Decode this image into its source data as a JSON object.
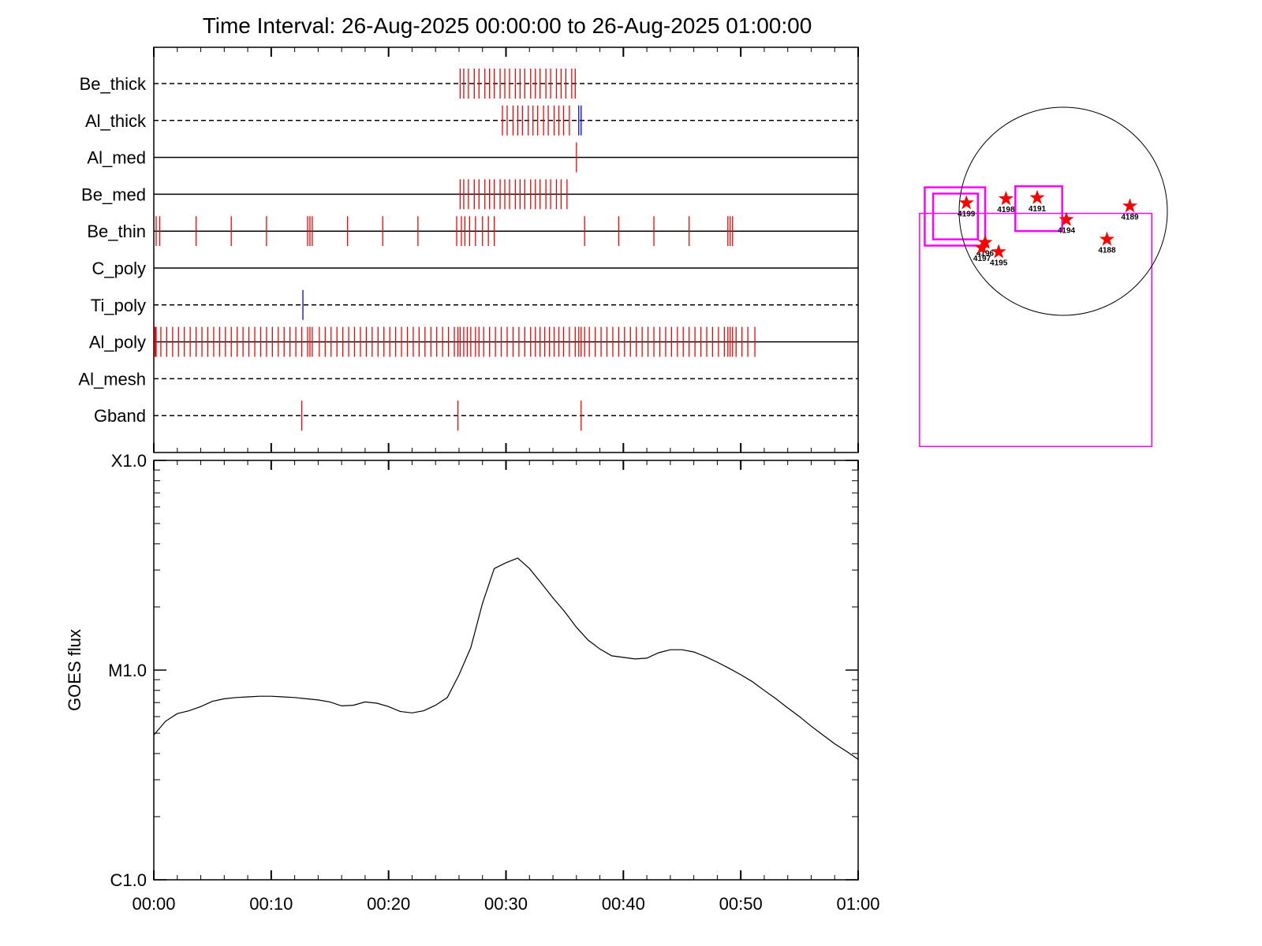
{
  "title": "Time Interval: 26-Aug-2025 00:00:00 to 26-Aug-2025 01:00:00",
  "colors": {
    "red": "#ff0000",
    "blue": "#0000ff",
    "magenta": "#ff00ff",
    "black": "#000000"
  },
  "chart_data": [
    {
      "type": "timeline",
      "x_unit": "minutes after 26-Aug-2025 00:00:00",
      "xlim": [
        0,
        60
      ],
      "tracks": [
        {
          "name": "Be_thick",
          "line": "dashed",
          "red": [
            26.1,
            26.4,
            26.8,
            27.3,
            27.7,
            28.2,
            28.6,
            29.0,
            29.5,
            29.9,
            30.3,
            30.8,
            31.2,
            31.6,
            32.1,
            32.5,
            32.9,
            33.4,
            33.8,
            34.3,
            34.7,
            35.1,
            35.6,
            35.9
          ],
          "blue": []
        },
        {
          "name": "Al_thick",
          "line": "dashed",
          "red": [
            29.7,
            30.1,
            30.6,
            31.0,
            31.4,
            31.9,
            32.3,
            32.7,
            33.2,
            33.6,
            34.1,
            34.5,
            34.9,
            35.4
          ],
          "blue": [
            36.2,
            36.4
          ]
        },
        {
          "name": "Al_med",
          "line": "solid",
          "red": [
            36.0
          ],
          "blue": []
        },
        {
          "name": "Be_med",
          "line": "solid",
          "red": [
            26.1,
            26.4,
            26.8,
            27.3,
            27.7,
            28.2,
            28.6,
            29.0,
            29.5,
            29.9,
            30.3,
            30.8,
            31.2,
            31.6,
            32.1,
            32.5,
            32.9,
            33.4,
            33.8,
            34.3,
            34.7,
            35.2
          ],
          "blue": []
        },
        {
          "name": "Be_thin",
          "line": "solid",
          "red": [
            0.2,
            0.5,
            3.6,
            6.6,
            9.6,
            13.1,
            13.3,
            13.5,
            16.5,
            19.5,
            22.5,
            25.8,
            26.2,
            26.5,
            26.9,
            27.4,
            28.0,
            28.5,
            29.0,
            36.7,
            39.6,
            42.6,
            45.6,
            48.9,
            49.1,
            49.3
          ],
          "blue": []
        },
        {
          "name": "C_poly",
          "line": "solid",
          "red": [],
          "blue": []
        },
        {
          "name": "Ti_poly",
          "line": "dashed",
          "red": [],
          "blue": [
            12.7
          ]
        },
        {
          "name": "Al_poly",
          "line": "solid",
          "red": [
            0.1,
            0.15,
            0.2,
            0.6,
            1.1,
            1.6,
            2.1,
            2.6,
            3.1,
            3.6,
            4.1,
            4.6,
            5.1,
            5.6,
            6.1,
            6.6,
            7.1,
            7.6,
            8.1,
            8.6,
            9.1,
            9.6,
            10.1,
            10.6,
            11.1,
            11.6,
            12.1,
            12.6,
            13.1,
            13.3,
            13.5,
            14.1,
            14.6,
            15.1,
            15.6,
            16.1,
            16.6,
            17.1,
            17.6,
            18.1,
            18.6,
            19.1,
            19.6,
            20.1,
            20.6,
            21.1,
            21.6,
            22.1,
            22.6,
            23.1,
            23.6,
            24.1,
            24.6,
            25.1,
            25.6,
            25.9,
            26.1,
            26.4,
            26.7,
            27.0,
            27.4,
            27.7,
            28.1,
            28.6,
            29.1,
            29.6,
            30.1,
            30.6,
            31.1,
            31.6,
            32.1,
            32.5,
            32.9,
            33.3,
            33.7,
            34.1,
            34.5,
            34.9,
            35.4,
            35.9,
            36.2,
            36.4,
            36.7,
            37.1,
            37.6,
            38.1,
            38.6,
            39.1,
            39.6,
            40.1,
            40.6,
            41.1,
            41.6,
            42.1,
            42.6,
            43.1,
            43.6,
            44.1,
            44.6,
            45.1,
            45.6,
            46.1,
            46.6,
            47.1,
            47.6,
            48.1,
            48.6,
            48.9,
            49.1,
            49.3,
            49.6,
            50.1,
            50.6,
            51.2
          ],
          "blue": []
        },
        {
          "name": "Al_mesh",
          "line": "dashed",
          "red": [],
          "blue": []
        },
        {
          "name": "Gband",
          "line": "dashed",
          "red": [
            12.6,
            25.9,
            36.4
          ],
          "blue": []
        }
      ]
    },
    {
      "type": "line",
      "ylabel": "GOES flux",
      "ylog": true,
      "ylim": [
        1e-06,
        0.0001
      ],
      "yticks": [
        {
          "v": 1e-06,
          "label": "C1.0"
        },
        {
          "v": 1e-05,
          "label": "M1.0"
        },
        {
          "v": 0.0001,
          "label": "X1.0"
        }
      ],
      "xticks": [
        {
          "v": 0,
          "label": "00:00"
        },
        {
          "v": 10,
          "label": "00:10"
        },
        {
          "v": 20,
          "label": "00:20"
        },
        {
          "v": 30,
          "label": "00:30"
        },
        {
          "v": 40,
          "label": "00:40"
        },
        {
          "v": 50,
          "label": "00:50"
        },
        {
          "v": 60,
          "label": "01:00"
        }
      ],
      "series": [
        {
          "x": [
            0,
            1,
            2,
            3,
            4,
            5,
            6,
            7,
            8,
            9,
            10,
            11,
            12,
            13,
            14,
            15,
            16,
            17,
            18,
            19,
            20,
            21,
            22,
            23,
            24,
            25,
            26,
            27,
            28,
            29,
            30,
            31,
            32,
            33,
            34,
            35,
            36,
            37,
            38,
            39,
            40,
            41,
            42,
            43,
            44,
            45,
            46,
            47,
            48,
            49,
            50,
            51,
            52,
            53,
            54,
            55,
            56,
            57,
            58,
            59,
            60
          ],
          "y": [
            4.9e-06,
            5.7e-06,
            6.2e-06,
            6.4e-06,
            6.7e-06,
            7.1e-06,
            7.3e-06,
            7.4e-06,
            7.45e-06,
            7.5e-06,
            7.5e-06,
            7.45e-06,
            7.4e-06,
            7.3e-06,
            7.2e-06,
            7.05e-06,
            6.75e-06,
            6.8e-06,
            7.05e-06,
            6.95e-06,
            6.7e-06,
            6.35e-06,
            6.25e-06,
            6.4e-06,
            6.8e-06,
            7.4e-06,
            9.5e-06,
            1.28e-05,
            2.08e-05,
            3.05e-05,
            3.25e-05,
            3.42e-05,
            3.05e-05,
            2.6e-05,
            2.21e-05,
            1.9e-05,
            1.6e-05,
            1.39e-05,
            1.26e-05,
            1.17e-05,
            1.15e-05,
            1.13e-05,
            1.14e-05,
            1.21e-05,
            1.25e-05,
            1.25e-05,
            1.22e-05,
            1.16e-05,
            1.09e-05,
            1.02e-05,
            9.5e-06,
            8.8e-06,
            8e-06,
            7.3e-06,
            6.6e-06,
            6e-06,
            5.4e-06,
            4.9e-06,
            4.45e-06,
            4.1e-06,
            3.75e-06
          ]
        }
      ]
    },
    {
      "type": "scatter",
      "x_unit": "fraction of solar radius (solar x, west positive)",
      "y_unit": "fraction of solar radius (solar y, north positive)",
      "limb_radius": 1.0,
      "stars": [
        {
          "label": "4199",
          "x": -0.93,
          "y": 0.08
        },
        {
          "label": "4198",
          "x": -0.55,
          "y": 0.12
        },
        {
          "label": "4191",
          "x": -0.25,
          "y": 0.13
        },
        {
          "label": "4194",
          "x": 0.03,
          "y": -0.08
        },
        {
          "label": "4189",
          "x": 0.64,
          "y": 0.05
        },
        {
          "label": "4188",
          "x": 0.42,
          "y": -0.27
        },
        {
          "label": "4196",
          "x": -0.75,
          "y": -0.3
        },
        {
          "label": "4197",
          "x": -0.78,
          "y": -0.35
        },
        {
          "label": "4195",
          "x": -0.62,
          "y": -0.39
        }
      ],
      "boxes": [
        {
          "x0": -1.38,
          "y0": -2.26,
          "x1": 0.85,
          "y1": -0.02
        },
        {
          "x0": -1.33,
          "y0": -0.33,
          "x1": -0.75,
          "y1": 0.23
        },
        {
          "x0": -1.25,
          "y0": -0.27,
          "x1": -0.82,
          "y1": 0.17
        },
        {
          "x0": -0.46,
          "y0": -0.19,
          "x1": -0.01,
          "y1": 0.24
        }
      ],
      "box_frame_note": "box coordinates in solar radii relative to disk center"
    }
  ]
}
